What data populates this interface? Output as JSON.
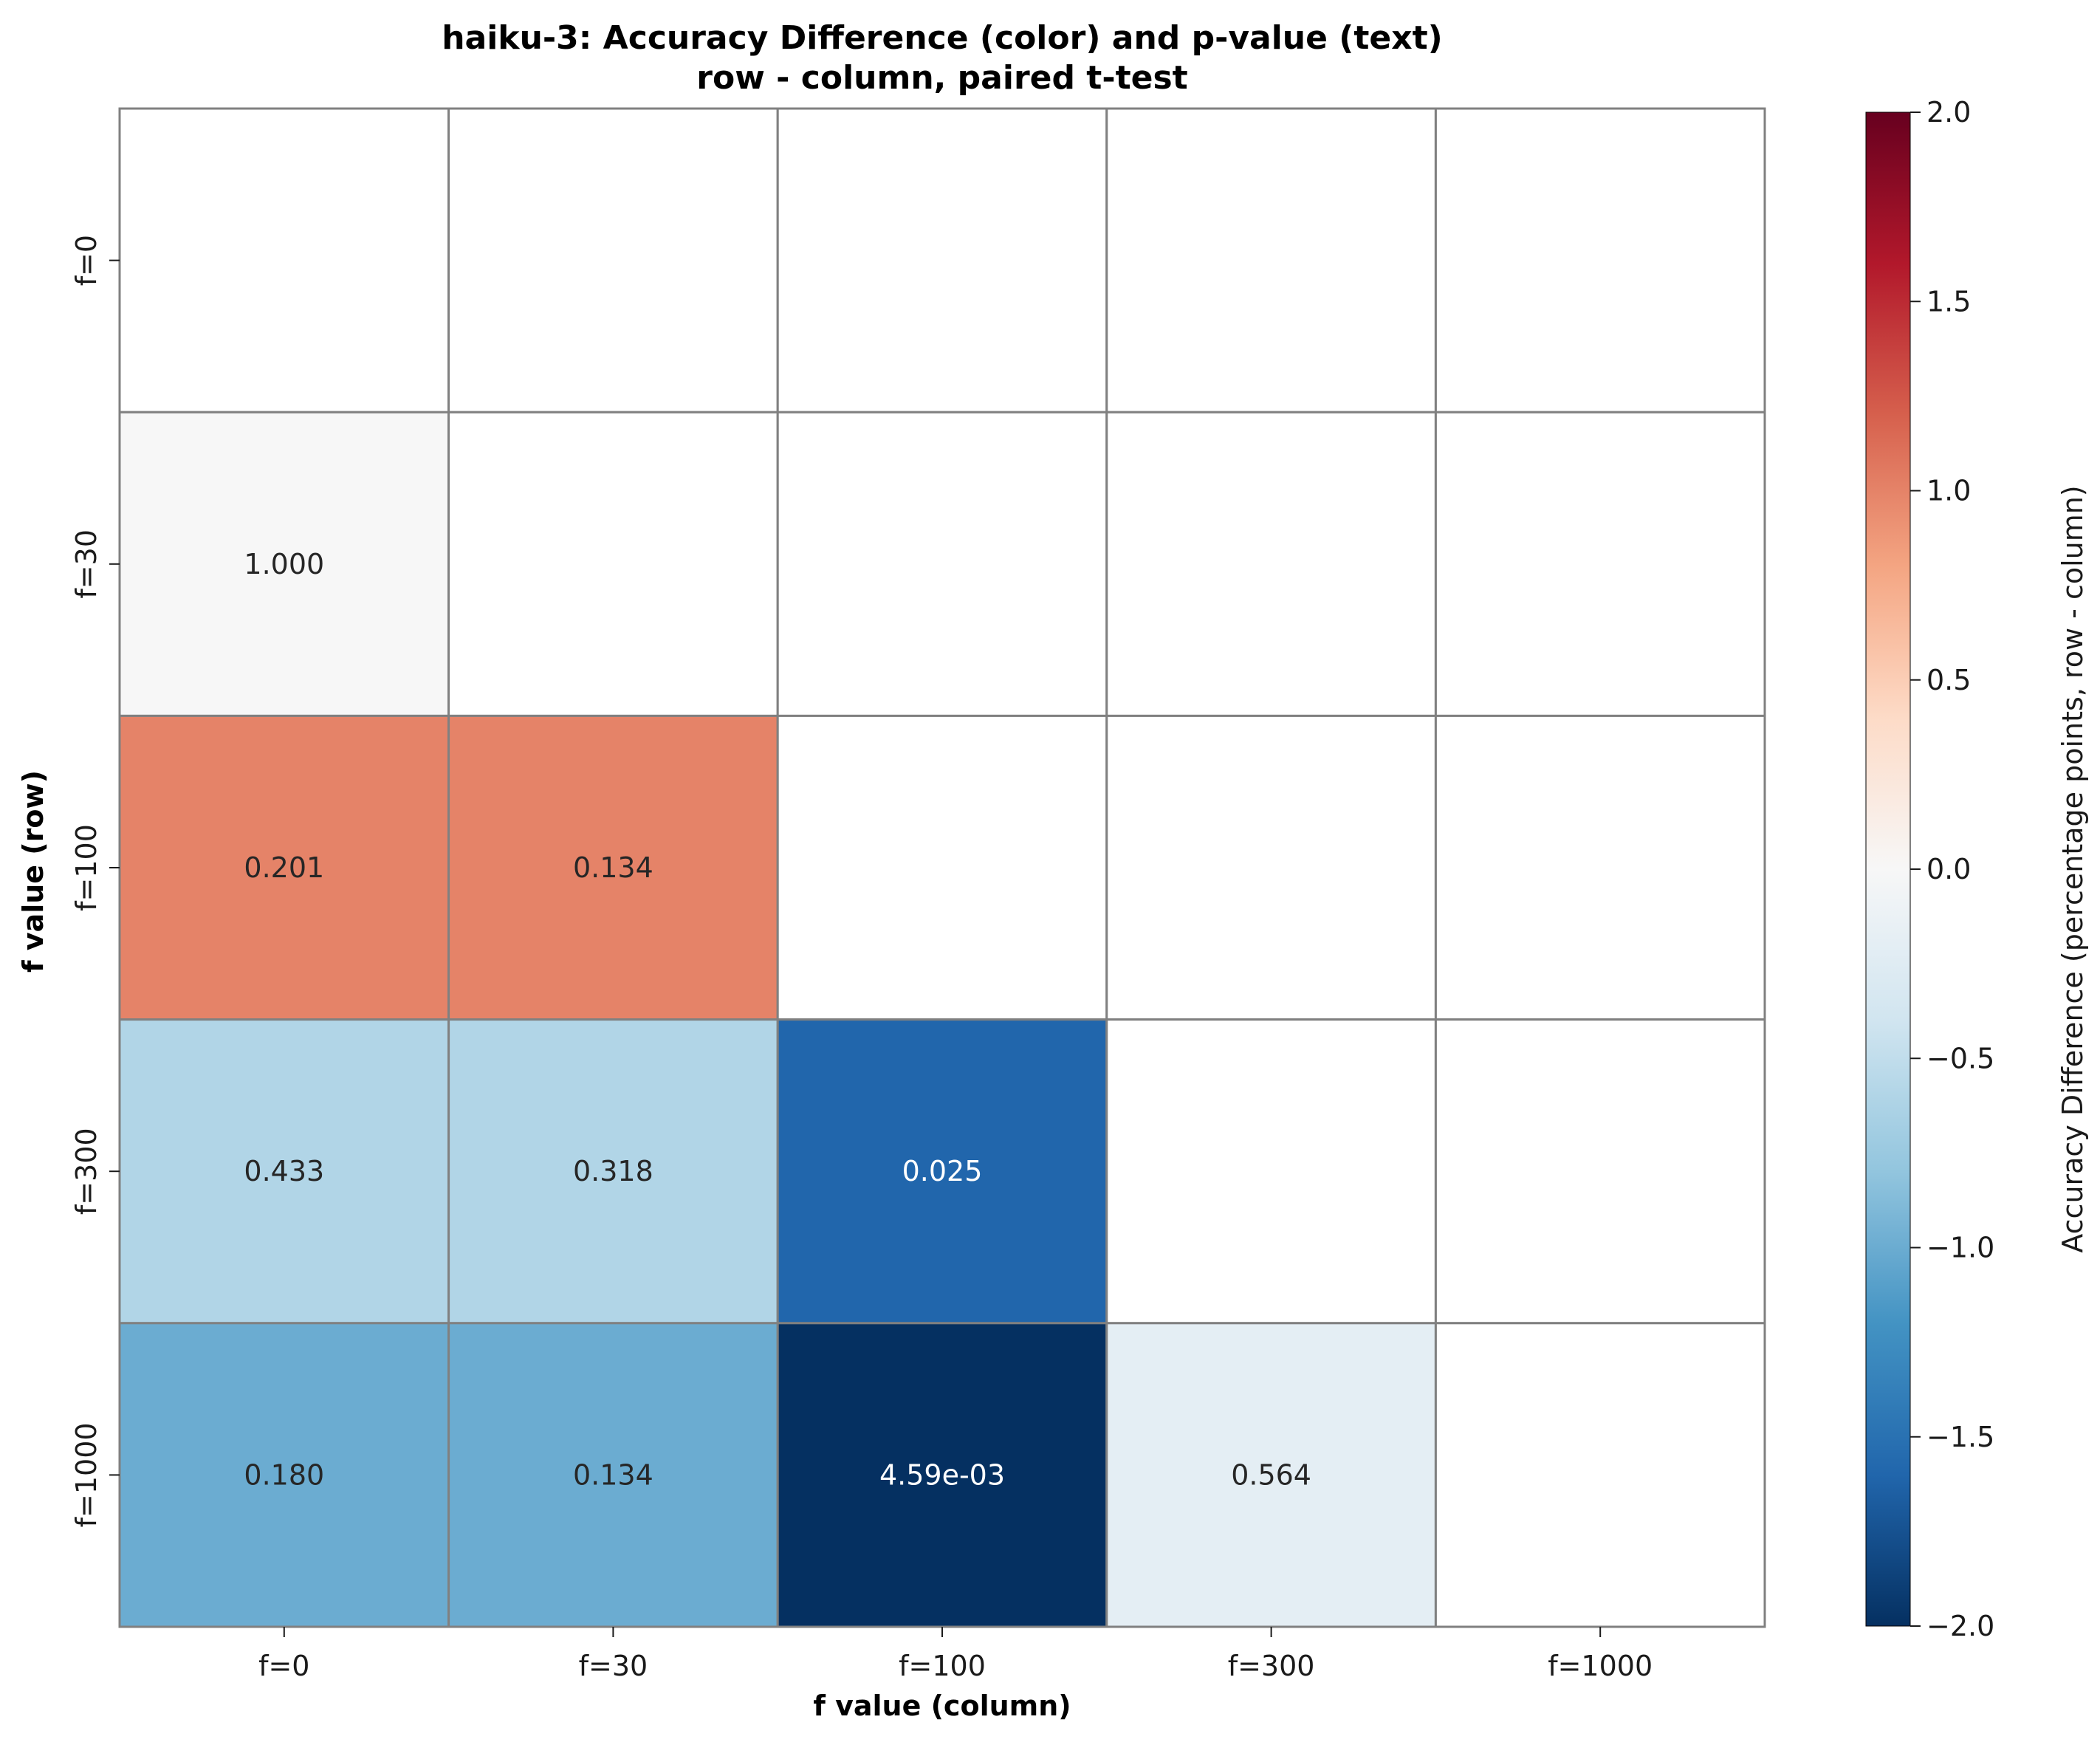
{
  "chart_data": {
    "type": "heatmap",
    "title_line1": "haiku-3: Accuracy Difference (color) and p-value (text)",
    "title_line2": "row - column, paired t-test",
    "xlabel": "f value (column)",
    "ylabel": "f value (row)",
    "row_labels": [
      "f=0",
      "f=30",
      "f=100",
      "f=300",
      "f=1000"
    ],
    "col_labels": [
      "f=0",
      "f=30",
      "f=100",
      "f=300",
      "f=1000"
    ],
    "values": [
      [
        null,
        null,
        null,
        null,
        null
      ],
      [
        0.0,
        null,
        null,
        null,
        null
      ],
      [
        1.0,
        1.0,
        null,
        null,
        null
      ],
      [
        -0.6,
        -0.6,
        -1.6,
        null,
        null
      ],
      [
        -1.0,
        -1.0,
        -2.0,
        -0.2,
        null
      ]
    ],
    "annotations": [
      [
        "",
        "",
        "",
        "",
        ""
      ],
      [
        "1.000",
        "",
        "",
        "",
        ""
      ],
      [
        "0.201",
        "0.134",
        "",
        "",
        ""
      ],
      [
        "0.433",
        "0.318",
        "0.025",
        "",
        ""
      ],
      [
        "0.180",
        "0.134",
        "4.59e-03",
        "0.564",
        ""
      ]
    ],
    "colorbar": {
      "label": "Accuracy Difference (percentage points, row - column)",
      "vmin": -2.0,
      "vmax": 2.0,
      "colormap": "RdBu_r",
      "ticks": [
        2.0,
        1.5,
        1.0,
        0.5,
        0.0,
        -0.5,
        -1.0,
        -1.5,
        -2.0
      ],
      "tick_labels": [
        "2.0",
        "1.5",
        "1.0",
        "0.5",
        "0.0",
        "−0.5",
        "−1.0",
        "−1.5",
        "−2.0"
      ]
    },
    "grid_color": "#808080",
    "text_dark": "#262626",
    "text_light": "#ffffff"
  }
}
